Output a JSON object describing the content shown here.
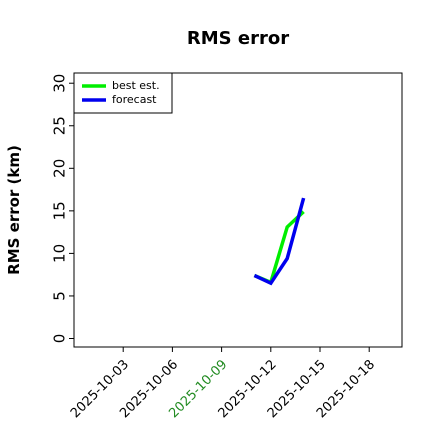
{
  "chart_data": {
    "type": "line",
    "title": "RMS error",
    "y_label": "RMS error (km)",
    "x": [
      "2025-10-11",
      "2025-10-12",
      "2025-10-13",
      "2025-10-14"
    ],
    "series": [
      {
        "name": "best est.",
        "color": "#00ee00",
        "values": [
          7.4,
          6.6,
          13.1,
          14.9
        ]
      },
      {
        "name": "forecast",
        "color": "#0000ee",
        "values": [
          7.4,
          6.5,
          9.4,
          16.5
        ]
      }
    ],
    "xlim": [
      "2025-09-30",
      "2025-10-20"
    ],
    "xticks": [
      "2025-10-03",
      "2025-10-06",
      "2025-10-09",
      "2025-10-12",
      "2025-10-15",
      "2025-10-18"
    ],
    "highlight_xtick": "2025-10-09",
    "highlight_color": "#228b22",
    "ylim": [
      -1,
      31.2
    ],
    "yticks": [
      0,
      5,
      10,
      15,
      20,
      25,
      30
    ],
    "legend": "upper left"
  }
}
